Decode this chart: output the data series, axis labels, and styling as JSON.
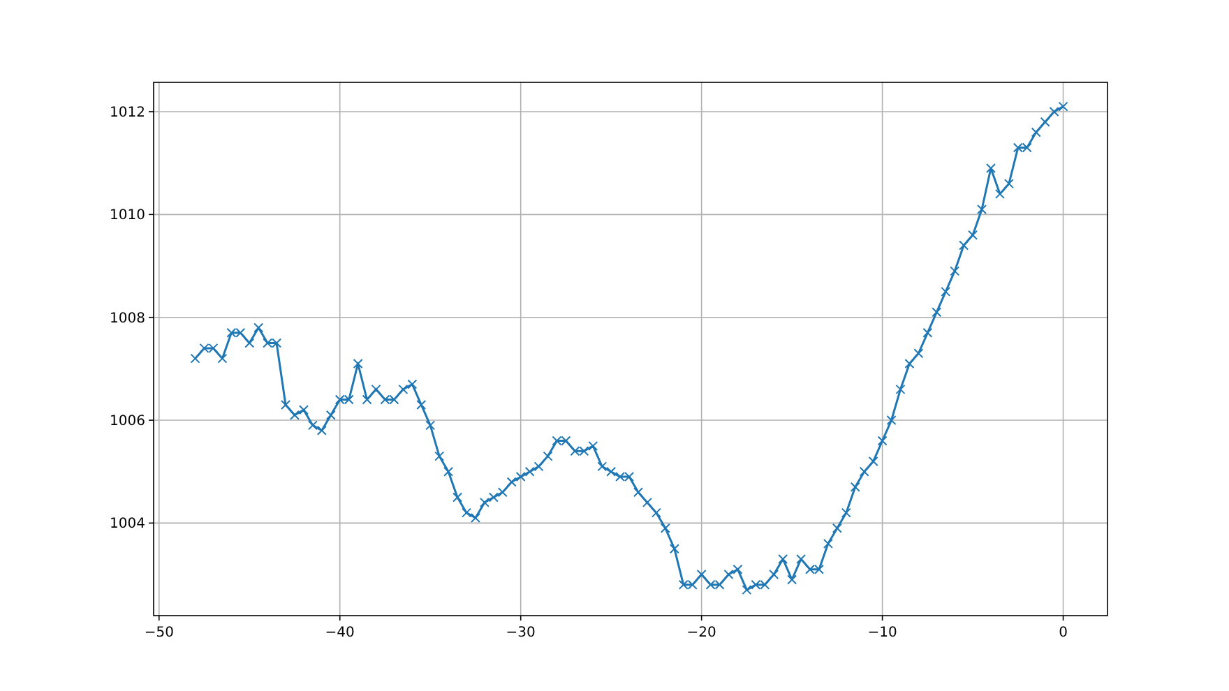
{
  "chart_data": {
    "type": "line",
    "x": [
      -48,
      -47.5,
      -47,
      -46.5,
      -46,
      -45.5,
      -45,
      -44.5,
      -44,
      -43.5,
      -43,
      -42.5,
      -42,
      -41.5,
      -41,
      -40.5,
      -40,
      -39.5,
      -39,
      -38.5,
      -38,
      -37.5,
      -37,
      -36.5,
      -36,
      -35.5,
      -35,
      -34.5,
      -34,
      -33.5,
      -33,
      -32.5,
      -32,
      -31.5,
      -31,
      -30.5,
      -30,
      -29.5,
      -29,
      -28.5,
      -28,
      -27.5,
      -27,
      -26.5,
      -26,
      -25.5,
      -25,
      -24.5,
      -24,
      -23.5,
      -23,
      -22.5,
      -22,
      -21.5,
      -21,
      -20.5,
      -20,
      -19.5,
      -19,
      -18.5,
      -18,
      -17.5,
      -17,
      -16.5,
      -16,
      -15.5,
      -15,
      -14.5,
      -14,
      -13.5,
      -13,
      -12.5,
      -12,
      -11.5,
      -11,
      -10.5,
      -10,
      -9.5,
      -9,
      -8.5,
      -8,
      -7.5,
      -7,
      -6.5,
      -6,
      -5.5,
      -5,
      -4.5,
      -4,
      -3.5,
      -3,
      -2.5,
      -2,
      -1.5,
      -1,
      -0.5,
      0
    ],
    "series": [
      {
        "color": "#1f77b4",
        "values": [
          1007.2,
          1007.4,
          1007.4,
          1007.2,
          1007.7,
          1007.7,
          1007.5,
          1007.8,
          1007.5,
          1007.5,
          1006.3,
          1006.1,
          1006.2,
          1005.9,
          1005.8,
          1006.1,
          1006.4,
          1006.4,
          1007.1,
          1006.4,
          1006.6,
          1006.4,
          1006.4,
          1006.6,
          1006.7,
          1006.3,
          1005.9,
          1005.3,
          1005.0,
          1004.5,
          1004.2,
          1004.1,
          1004.4,
          1004.5,
          1004.6,
          1004.8,
          1004.9,
          1005.0,
          1005.1,
          1005.3,
          1005.6,
          1005.6,
          1005.4,
          1005.4,
          1005.5,
          1005.1,
          1005.0,
          1004.9,
          1004.9,
          1004.6,
          1004.4,
          1004.2,
          1003.9,
          1003.5,
          1002.8,
          1002.8,
          1003.0,
          1002.8,
          1002.8,
          1003.0,
          1003.1,
          1002.7,
          1002.8,
          1002.8,
          1003.0,
          1003.3,
          1002.9,
          1003.3,
          1003.1,
          1003.1,
          1003.6,
          1003.9,
          1004.2,
          1004.7,
          1005.0,
          1005.2,
          1005.6,
          1006.0,
          1006.6,
          1007.1,
          1007.3,
          1007.7,
          1008.1,
          1008.5,
          1008.9,
          1009.4,
          1009.6,
          1010.1,
          1010.9,
          1010.4,
          1010.6,
          1011.3,
          1011.3,
          1011.6,
          1011.8,
          1012.0,
          1012.1
        ]
      }
    ],
    "xlim": [
      -50.3,
      2.45
    ],
    "ylim": [
      1002.2,
      1012.57
    ],
    "xticks": [
      {
        "value": -50,
        "label": "−50"
      },
      {
        "value": -40,
        "label": "−40"
      },
      {
        "value": -30,
        "label": "−30"
      },
      {
        "value": -20,
        "label": "−20"
      },
      {
        "value": -10,
        "label": "−10"
      },
      0
    ],
    "yticks": [
      1004,
      1006,
      1008,
      1010,
      1012
    ],
    "grid": true,
    "marker": "cross",
    "line_style": "solid"
  }
}
